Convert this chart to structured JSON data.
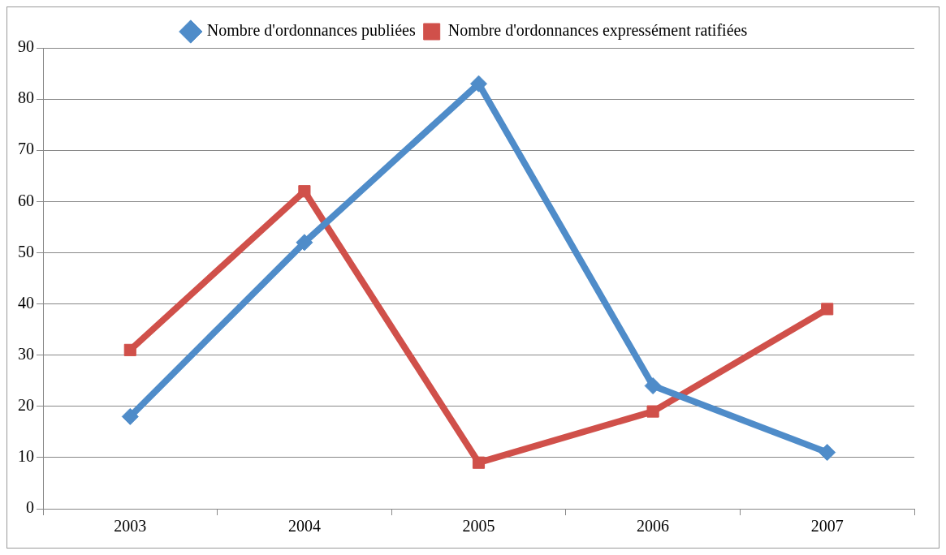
{
  "chart_data": {
    "type": "line",
    "categories": [
      "2003",
      "2004",
      "2005",
      "2006",
      "2007"
    ],
    "series": [
      {
        "name": "Nombre d'ordonnances publiées",
        "color": "#4f8cc9",
        "marker": "diamond",
        "values": [
          18,
          52,
          83,
          24,
          11
        ]
      },
      {
        "name": "Nombre d'ordonnances expressément ratifiées",
        "color": "#d0504a",
        "marker": "square",
        "values": [
          31,
          62,
          9,
          19,
          39
        ]
      }
    ],
    "ylim": [
      0,
      90
    ],
    "yticks": [
      0,
      10,
      20,
      30,
      40,
      50,
      60,
      70,
      80,
      90
    ],
    "grid": "y",
    "legend": "top",
    "line_style": "solid"
  }
}
